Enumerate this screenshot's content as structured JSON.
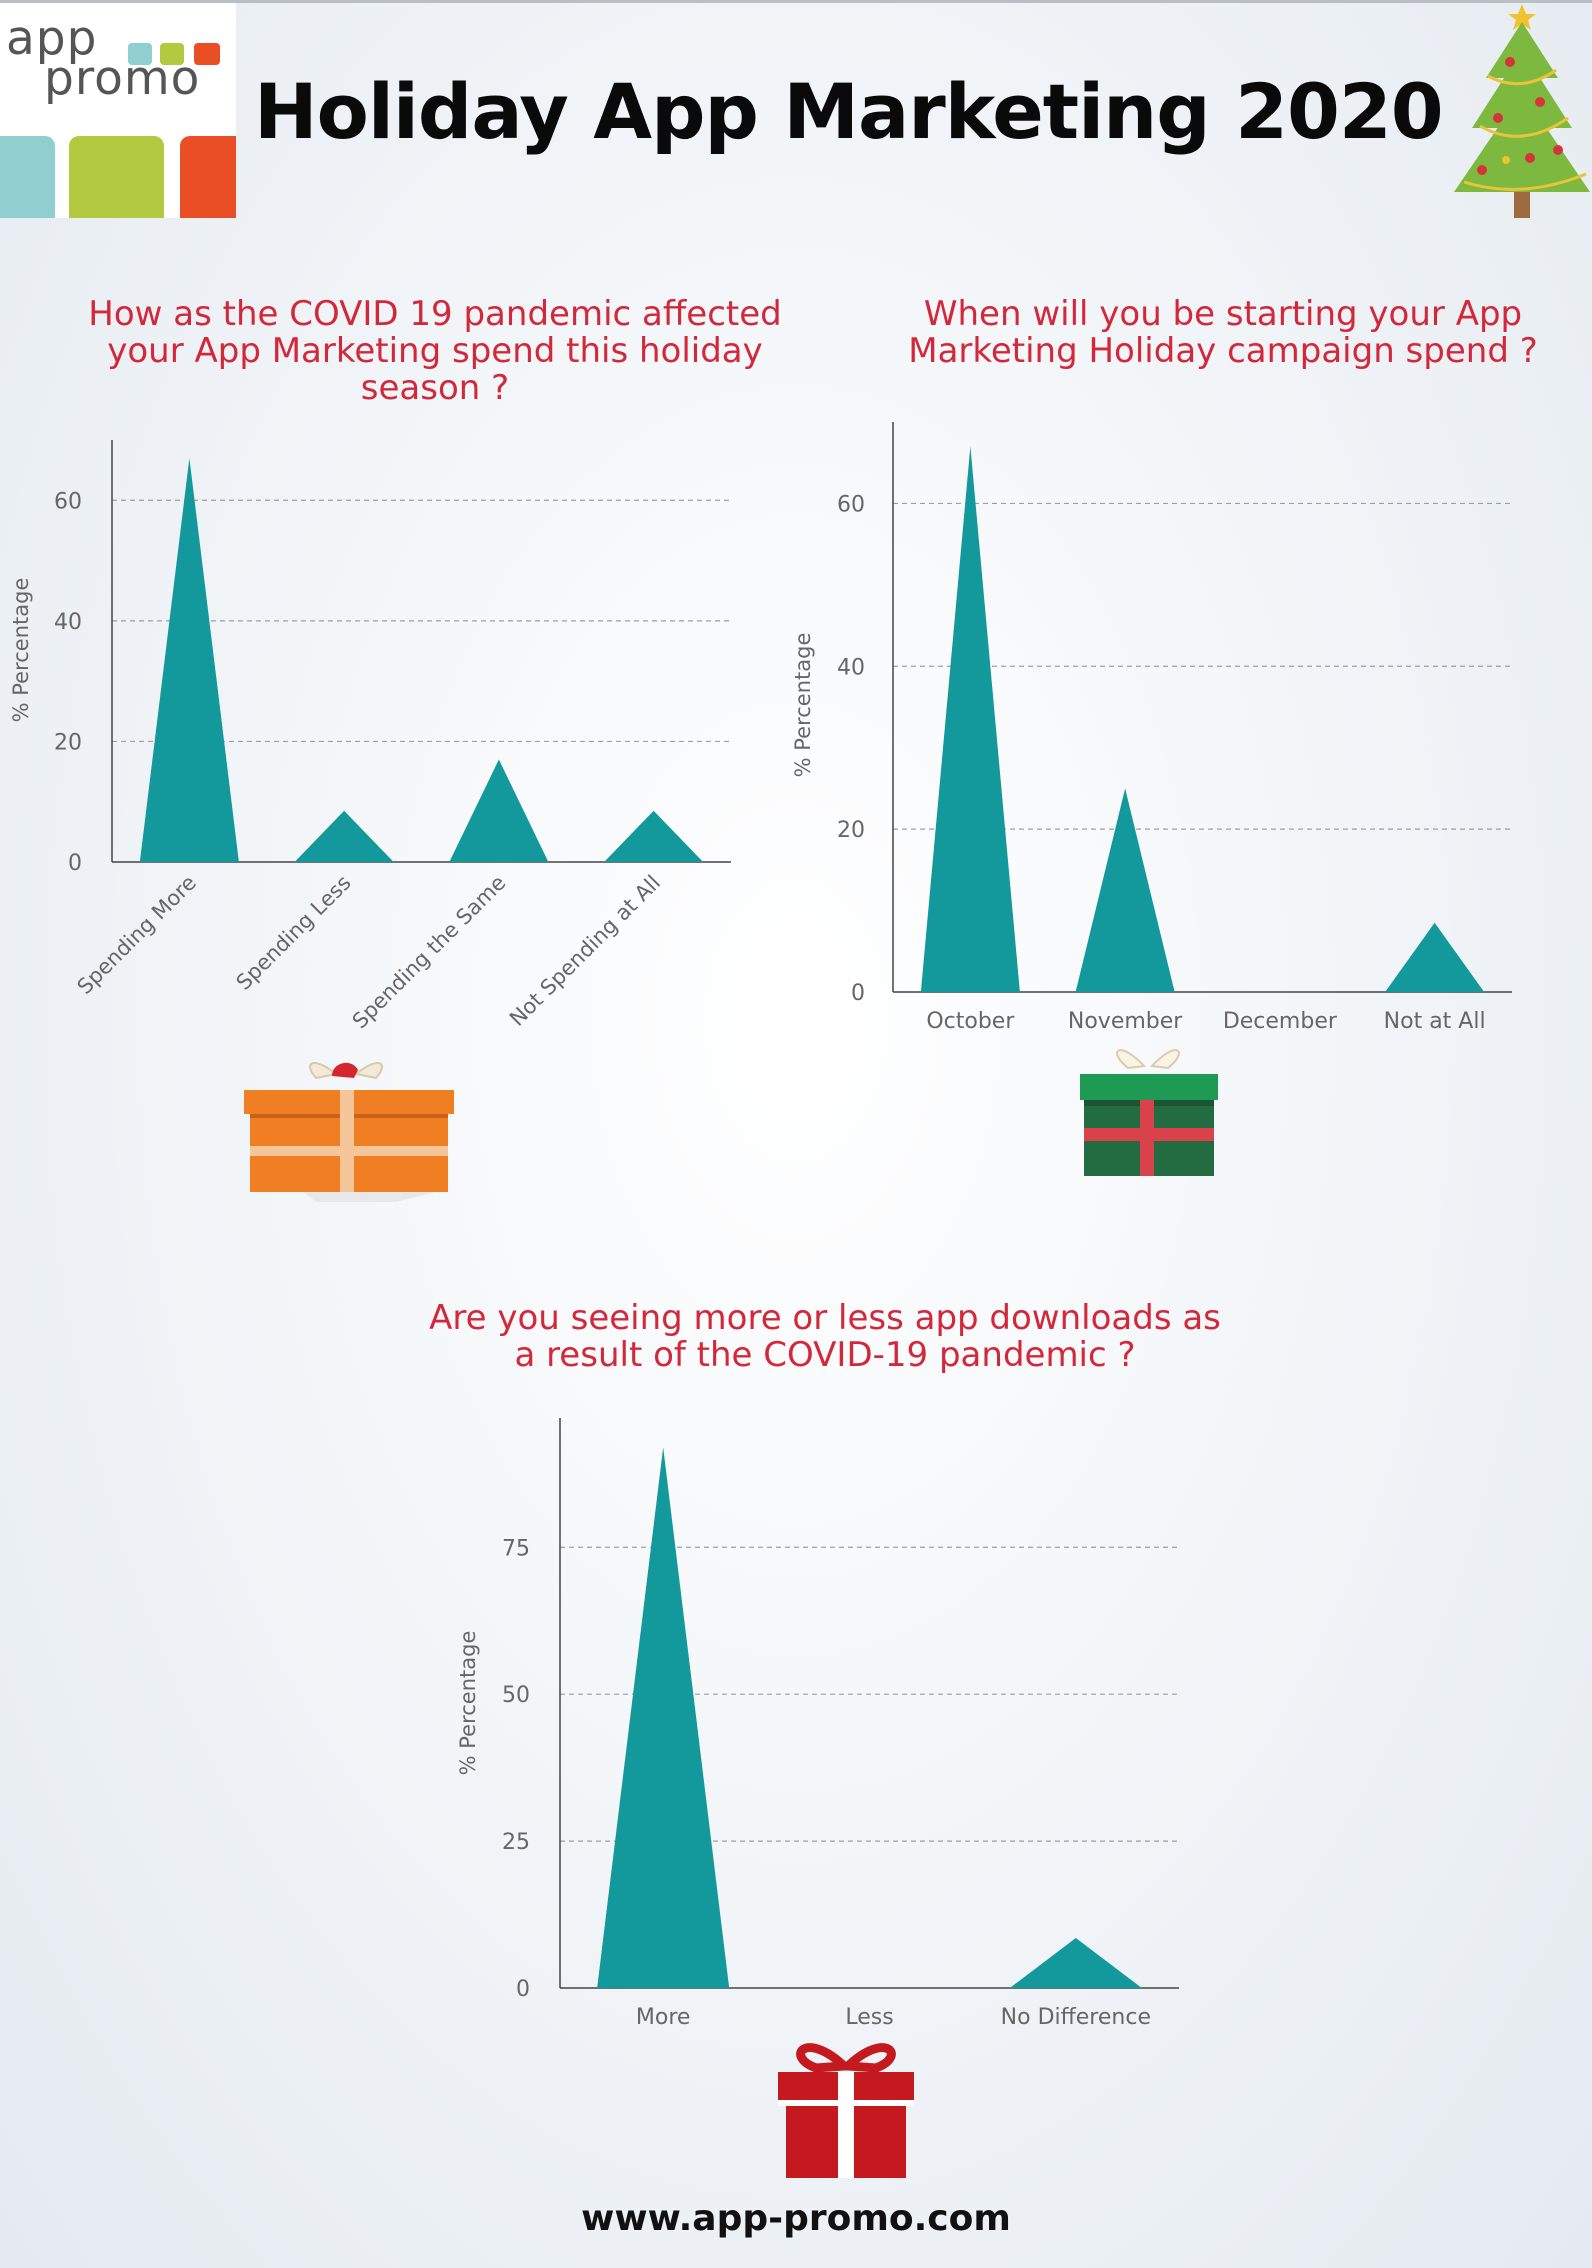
{
  "logo": {
    "line1": "app",
    "line2": "promo"
  },
  "page_title": "Holiday App Marketing 2020",
  "footer_url": "www.app-promo.com",
  "colors": {
    "mark": "#13999c",
    "title": "#d3283a",
    "logo_teal": "#8fcfcf",
    "logo_green": "#b3c940",
    "logo_orange": "#e94e25"
  },
  "icons": [
    "christmas-tree-icon",
    "orange-gift-icon",
    "green-gift-icon",
    "red-gift-icon"
  ],
  "chart_data": [
    {
      "type": "area",
      "title": "How as the COVID 19 pandemic affected your App Marketing spend this holiday season ?",
      "ylabel": "% Percentage",
      "xlabel": "",
      "categories": [
        "Spending More",
        "Spending Less",
        "Spending the Same",
        "Not Spending at All"
      ],
      "values": [
        67,
        8.5,
        17,
        8.5
      ],
      "ylim": [
        0,
        70
      ],
      "yticks": [
        0,
        20,
        40,
        60
      ],
      "grid": true,
      "rotated_labels": true
    },
    {
      "type": "area",
      "title": "When will you be starting your App Marketing Holiday campaign spend ?",
      "ylabel": "% Percentage",
      "xlabel": "",
      "categories": [
        "October",
        "November",
        "December",
        "Not at All"
      ],
      "values": [
        67,
        25,
        0,
        8.5
      ],
      "ylim": [
        0,
        70
      ],
      "yticks": [
        0,
        20,
        40,
        60
      ],
      "grid": true,
      "rotated_labels": false
    },
    {
      "type": "area",
      "title": "Are you seeing more or less app downloads as a result of the COVID-19 pandemic ?",
      "ylabel": "% Percentage",
      "xlabel": "",
      "categories": [
        "More",
        "Less",
        "No Difference"
      ],
      "values": [
        92,
        0,
        8.5
      ],
      "ylim": [
        0,
        97
      ],
      "yticks": [
        0,
        25,
        50,
        75
      ],
      "grid": true,
      "rotated_labels": false
    }
  ]
}
